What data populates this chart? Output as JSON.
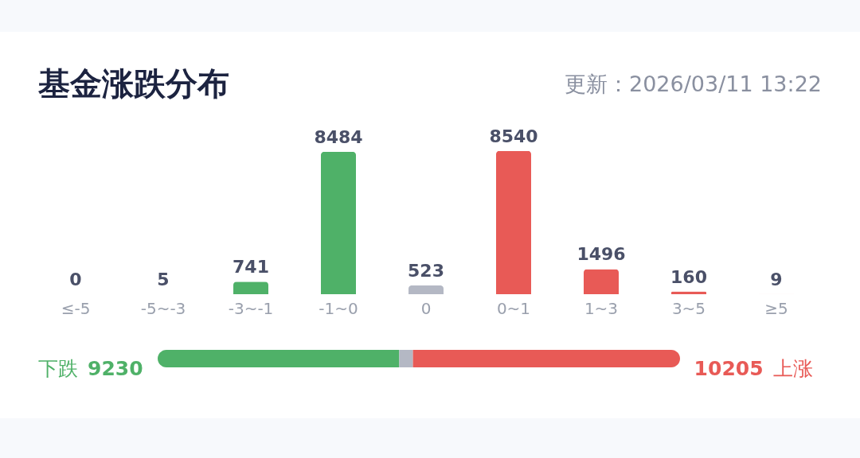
{
  "chart_data": [
    {
      "type": "bar",
      "title": "基金涨跌分布",
      "subtitle": "更新：2026/03/11 13:22",
      "categories": [
        "≤-5",
        "-5~-3",
        "-3~-1",
        "-1~0",
        "0",
        "0~1",
        "1~3",
        "3~5",
        "≥5"
      ],
      "values": [
        0,
        5,
        741,
        8484,
        523,
        8540,
        1496,
        160,
        9
      ],
      "colors": [
        "#4fb168",
        "#4fb168",
        "#4fb168",
        "#4fb168",
        "#b4b8c4",
        "#e85a56",
        "#e85a56",
        "#e85a56",
        "#e85a56"
      ],
      "data_labels": true
    },
    {
      "type": "bar",
      "orientation": "horizontal",
      "stacked": true,
      "categories": [
        null
      ],
      "series": [
        {
          "name": "下跌",
          "color": "#4fb168",
          "values": [
            9230
          ],
          "value_labels": [
            "9230"
          ]
        },
        {
          "color": "#b4b8c4",
          "values": [
            523
          ],
          "value_labels": [
            null
          ]
        },
        {
          "name": "上涨",
          "color": "#e85a56",
          "values": [
            10205
          ],
          "value_labels": [
            "10205"
          ]
        }
      ]
    }
  ]
}
